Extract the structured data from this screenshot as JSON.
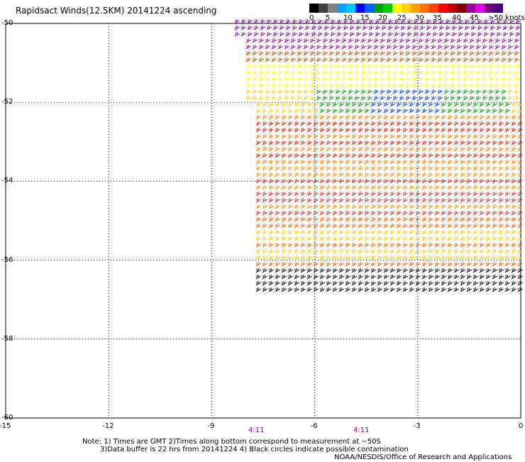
{
  "title": "Rapidsact Winds(12.5KM) 20141224 ascending",
  "legend": {
    "colors": [
      "#000000",
      "#404040",
      "#808080",
      "#00a0ff",
      "#00c8ff",
      "#0000ff",
      "#0060ff",
      "#00a000",
      "#00d000",
      "#ffff00",
      "#ffd000",
      "#ffa000",
      "#ff7000",
      "#ff4000",
      "#ff0000",
      "#c00000",
      "#800000",
      "#a000a0",
      "#e000e0",
      "#700080",
      "#4b0082"
    ],
    "labels": [
      "0",
      "5",
      "10",
      "15",
      "20",
      "25",
      "30",
      "35",
      "40",
      "45",
      ">50 knots"
    ]
  },
  "map": {
    "lat_labels": [
      "-50",
      "-52",
      "-54",
      "-56",
      "-58",
      "-60"
    ],
    "lon_labels": [
      "-15",
      "-12",
      "-9",
      "-6",
      "-3",
      "0"
    ],
    "time_labels": [
      "4:11",
      "4:11"
    ],
    "swath": {
      "lon_range": [
        -8,
        0
      ],
      "lat_range": [
        -56.9,
        -50
      ]
    }
  },
  "notes": {
    "line1": "Note: 1) Times are GMT  2)Times along bottom correspond to measurement at −50S",
    "line2": "3)Data buffer is 22 hrs from 20141224  4) Black circles indicate possible contamination",
    "line3": "NOAA/NESDIS/Office of Research and Applications"
  }
}
